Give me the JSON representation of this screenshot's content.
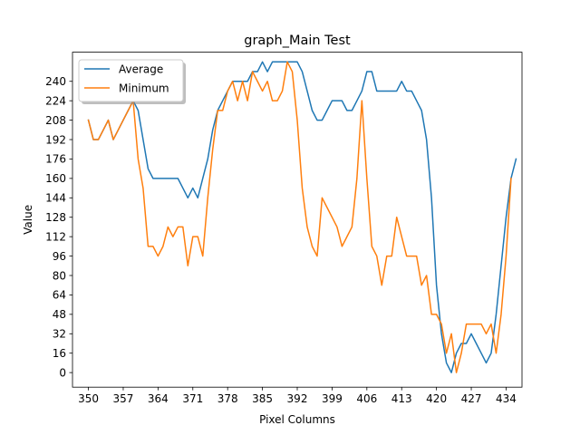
{
  "chart_data": {
    "type": "line",
    "title": "graph_Main Test",
    "xlabel": "Pixel Columns",
    "ylabel": "Value",
    "xlim": [
      346.8,
      437.2
    ],
    "ylim": [
      -12,
      264
    ],
    "xticks": [
      350,
      357,
      364,
      371,
      378,
      385,
      392,
      399,
      406,
      413,
      420,
      427,
      434
    ],
    "yticks": [
      0,
      16,
      32,
      48,
      64,
      80,
      96,
      112,
      128,
      144,
      160,
      176,
      192,
      208,
      224,
      240
    ],
    "grid": false,
    "legend_position": "upper-left",
    "series": [
      {
        "name": "Average",
        "color": "#1f77b4",
        "points": [
          [
            350,
            208
          ],
          [
            351,
            192
          ],
          [
            352,
            192
          ],
          [
            353,
            200
          ],
          [
            354,
            208
          ],
          [
            355,
            192
          ],
          [
            356,
            200
          ],
          [
            357,
            208
          ],
          [
            358,
            216
          ],
          [
            359,
            224
          ],
          [
            360,
            216
          ],
          [
            361,
            192
          ],
          [
            362,
            168
          ],
          [
            363,
            160
          ],
          [
            364,
            160
          ],
          [
            365,
            160
          ],
          [
            366,
            160
          ],
          [
            367,
            160
          ],
          [
            368,
            160
          ],
          [
            369,
            152
          ],
          [
            370,
            144
          ],
          [
            371,
            152
          ],
          [
            372,
            144
          ],
          [
            373,
            160
          ],
          [
            374,
            176
          ],
          [
            375,
            200
          ],
          [
            376,
            216
          ],
          [
            377,
            224
          ],
          [
            378,
            232
          ],
          [
            379,
            240
          ],
          [
            380,
            240
          ],
          [
            381,
            240
          ],
          [
            382,
            240
          ],
          [
            383,
            248
          ],
          [
            384,
            248
          ],
          [
            385,
            256
          ],
          [
            386,
            248
          ],
          [
            387,
            256
          ],
          [
            388,
            256
          ],
          [
            389,
            256
          ],
          [
            390,
            256
          ],
          [
            391,
            256
          ],
          [
            392,
            256
          ],
          [
            393,
            248
          ],
          [
            394,
            232
          ],
          [
            395,
            216
          ],
          [
            396,
            208
          ],
          [
            397,
            208
          ],
          [
            398,
            216
          ],
          [
            399,
            224
          ],
          [
            400,
            224
          ],
          [
            401,
            224
          ],
          [
            402,
            216
          ],
          [
            403,
            216
          ],
          [
            404,
            224
          ],
          [
            405,
            232
          ],
          [
            406,
            248
          ],
          [
            407,
            248
          ],
          [
            408,
            232
          ],
          [
            409,
            232
          ],
          [
            410,
            232
          ],
          [
            411,
            232
          ],
          [
            412,
            232
          ],
          [
            413,
            240
          ],
          [
            414,
            232
          ],
          [
            415,
            232
          ],
          [
            416,
            224
          ],
          [
            417,
            216
          ],
          [
            418,
            192
          ],
          [
            419,
            144
          ],
          [
            420,
            72
          ],
          [
            421,
            32
          ],
          [
            422,
            8
          ],
          [
            423,
            0
          ],
          [
            424,
            16
          ],
          [
            425,
            24
          ],
          [
            426,
            24
          ],
          [
            427,
            32
          ],
          [
            428,
            24
          ],
          [
            429,
            16
          ],
          [
            430,
            8
          ],
          [
            431,
            16
          ],
          [
            432,
            48
          ],
          [
            433,
            88
          ],
          [
            434,
            128
          ],
          [
            435,
            160
          ],
          [
            436,
            176
          ]
        ]
      },
      {
        "name": "Minimum",
        "color": "#ff7f0e",
        "points": [
          [
            350,
            208
          ],
          [
            351,
            192
          ],
          [
            352,
            192
          ],
          [
            353,
            200
          ],
          [
            354,
            208
          ],
          [
            355,
            192
          ],
          [
            356,
            200
          ],
          [
            357,
            208
          ],
          [
            358,
            216
          ],
          [
            359,
            224
          ],
          [
            360,
            176
          ],
          [
            361,
            152
          ],
          [
            362,
            104
          ],
          [
            363,
            104
          ],
          [
            364,
            96
          ],
          [
            365,
            104
          ],
          [
            366,
            120
          ],
          [
            367,
            112
          ],
          [
            368,
            120
          ],
          [
            369,
            120
          ],
          [
            370,
            88
          ],
          [
            371,
            112
          ],
          [
            372,
            112
          ],
          [
            373,
            96
          ],
          [
            374,
            144
          ],
          [
            375,
            184
          ],
          [
            376,
            216
          ],
          [
            377,
            216
          ],
          [
            378,
            232
          ],
          [
            379,
            240
          ],
          [
            380,
            224
          ],
          [
            381,
            240
          ],
          [
            382,
            224
          ],
          [
            383,
            248
          ],
          [
            384,
            240
          ],
          [
            385,
            232
          ],
          [
            386,
            240
          ],
          [
            387,
            224
          ],
          [
            388,
            224
          ],
          [
            389,
            232
          ],
          [
            390,
            256
          ],
          [
            391,
            248
          ],
          [
            392,
            208
          ],
          [
            393,
            152
          ],
          [
            394,
            120
          ],
          [
            395,
            104
          ],
          [
            396,
            96
          ],
          [
            397,
            144
          ],
          [
            398,
            136
          ],
          [
            399,
            128
          ],
          [
            400,
            120
          ],
          [
            401,
            104
          ],
          [
            402,
            112
          ],
          [
            403,
            120
          ],
          [
            404,
            160
          ],
          [
            405,
            224
          ],
          [
            406,
            160
          ],
          [
            407,
            104
          ],
          [
            408,
            96
          ],
          [
            409,
            72
          ],
          [
            410,
            96
          ],
          [
            411,
            96
          ],
          [
            412,
            128
          ],
          [
            413,
            112
          ],
          [
            414,
            96
          ],
          [
            415,
            96
          ],
          [
            416,
            96
          ],
          [
            417,
            72
          ],
          [
            418,
            80
          ],
          [
            419,
            48
          ],
          [
            420,
            48
          ],
          [
            421,
            40
          ],
          [
            422,
            16
          ],
          [
            423,
            32
          ],
          [
            424,
            0
          ],
          [
            425,
            16
          ],
          [
            426,
            40
          ],
          [
            427,
            40
          ],
          [
            428,
            40
          ],
          [
            429,
            40
          ],
          [
            430,
            32
          ],
          [
            431,
            40
          ],
          [
            432,
            16
          ],
          [
            433,
            48
          ],
          [
            434,
            96
          ],
          [
            435,
            160
          ]
        ]
      }
    ]
  }
}
